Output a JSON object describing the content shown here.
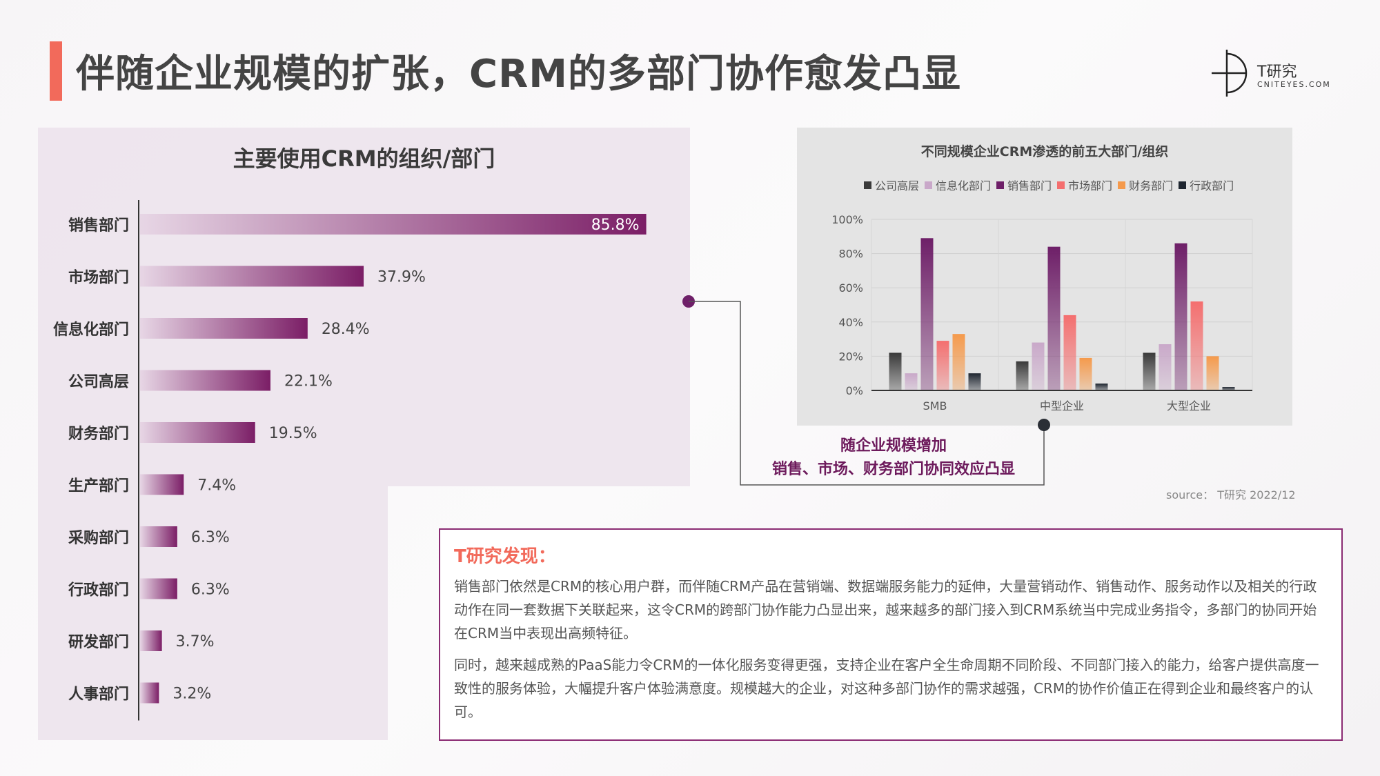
{
  "header": {
    "title": "伴随企业规模的扩张，CRM的多部门协作愈发凸显"
  },
  "logo": {
    "name": "T研究",
    "domain": "CNITEYES.COM"
  },
  "left_chart": {
    "title": "主要使用CRM的组织/部门"
  },
  "right_chart": {
    "title": "不同规模企业CRM渗透的前五大部门/组织",
    "legend": [
      "公司高层",
      "信息化部门",
      "销售部门",
      "市场部门",
      "财务部门",
      "行政部门"
    ]
  },
  "callout": {
    "line1": "随企业规模增加",
    "line2": "销售、市场、财务部门协同效应凸显"
  },
  "source": "source：  T研究 2022/12",
  "finding": {
    "title": "T研究发现：",
    "paragraph1": "销售部门依然是CRM的核心用户群，而伴随CRM产品在营销端、数据端服务能力的延伸，大量营销动作、销售动作、服务动作以及相关的行政动作在同一套数据下关联起来，这令CRM的跨部门协作能力凸显出来，越来越多的部门接入到CRM系统当中完成业务指令，多部门的协同开始在CRM当中表现出高频特征。",
    "paragraph2": "同时，越来越成熟的PaaS能力令CRM的一体化服务变得更强，支持企业在客户全生命周期不同阶段、不同部门接入的能力，给客户提供高度一致性的服务体验，大幅提升客户体验满意度。规模越大的企业，对这种多部门协作的需求越强，CRM的协作价值正在得到企业和最终客户的认可。"
  },
  "chart_data": [
    {
      "type": "bar",
      "orientation": "horizontal",
      "title": "主要使用CRM的组织/部门",
      "categories": [
        "销售部门",
        "市场部门",
        "信息化部门",
        "公司高层",
        "财务部门",
        "生产部门",
        "采购部门",
        "行政部门",
        "研发部门",
        "人事部门"
      ],
      "values": [
        85.8,
        37.9,
        28.4,
        22.1,
        19.5,
        7.4,
        6.3,
        6.3,
        3.7,
        3.2
      ],
      "value_labels": [
        "85.8%",
        "37.9%",
        "28.4%",
        "22.1%",
        "19.5%",
        "7.4%",
        "6.3%",
        "6.3%",
        "3.7%",
        "3.2%"
      ],
      "unit": "%",
      "xlim": [
        0,
        100
      ],
      "color": "#7b1e66"
    },
    {
      "type": "bar",
      "title": "不同规模企业CRM渗透的前五大部门/组织",
      "categories": [
        "SMB",
        "中型企业",
        "大型企业"
      ],
      "series": [
        {
          "name": "公司高层",
          "values": [
            22,
            17,
            22
          ],
          "color": "#3a3a3a"
        },
        {
          "name": "信息化部门",
          "values": [
            10,
            28,
            27
          ],
          "color": "#c9a8c9"
        },
        {
          "name": "销售部门",
          "values": [
            89,
            84,
            86
          ],
          "color": "#6e1f68"
        },
        {
          "name": "市场部门",
          "values": [
            29,
            44,
            52
          ],
          "color": "#f46f6f"
        },
        {
          "name": "财务部门",
          "values": [
            33,
            19,
            20
          ],
          "color": "#f59a4c"
        },
        {
          "name": "行政部门",
          "values": [
            10,
            4,
            2
          ],
          "color": "#1f2630"
        }
      ],
      "yticks": [
        "0%",
        "20%",
        "40%",
        "60%",
        "80%",
        "100%"
      ],
      "ylim": [
        0,
        100
      ],
      "grid": true,
      "legend_position": "top"
    }
  ]
}
